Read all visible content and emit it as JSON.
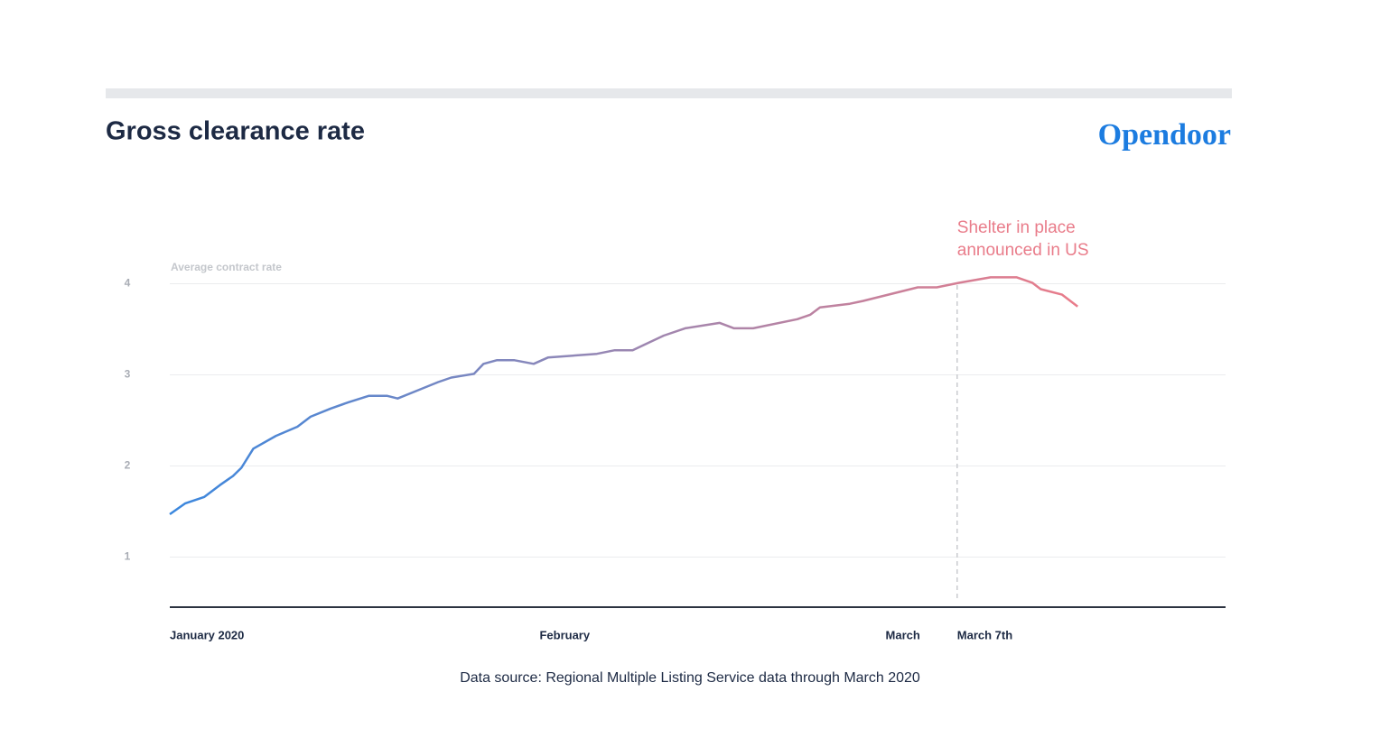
{
  "chart_data": {
    "type": "line",
    "title": "Gross clearance rate",
    "brand": "Opendoor",
    "y_label": "Average contract rate",
    "source": "Data source:  Regional Multiple Listing Service data through March 2020",
    "annotation": {
      "lines": [
        "Shelter in place",
        "announced in US"
      ],
      "color": "#e97c8a"
    },
    "x": [
      0,
      1.3,
      2.9,
      4.2,
      5.3,
      6.0,
      7.0,
      8.9,
      10.7,
      11.8,
      13.5,
      15.0,
      16.7,
      18.2,
      19.1,
      20.8,
      22.5,
      23.6,
      25.5,
      26.3,
      27.4,
      28.9,
      30.5,
      31.7,
      35.8,
      37.3,
      38.8,
      41.4,
      43.2,
      46.1,
      47.3,
      48.9,
      52.6,
      53.7,
      54.5,
      57.0,
      58.1,
      62.7,
      64.3,
      66.2,
      68.8,
      71.0,
      72.3,
      73.0,
      74.8,
      76.1
    ],
    "series": [
      {
        "gradient": [
          "#3a87de",
          "#9a87b2",
          "#e97c8a"
        ],
        "values": [
          1.47,
          1.59,
          1.66,
          1.79,
          1.89,
          1.98,
          2.19,
          2.33,
          2.43,
          2.54,
          2.63,
          2.7,
          2.77,
          2.77,
          2.74,
          2.83,
          2.92,
          2.97,
          3.01,
          3.12,
          3.16,
          3.16,
          3.12,
          3.19,
          3.23,
          3.27,
          3.27,
          3.43,
          3.51,
          3.57,
          3.51,
          3.51,
          3.61,
          3.66,
          3.74,
          3.78,
          3.81,
          3.96,
          3.96,
          4.01,
          4.07,
          4.07,
          4.01,
          3.94,
          3.88,
          3.75
        ]
      }
    ],
    "xlim": [
      0,
      88.5
    ],
    "xticks": [
      {
        "value": 0,
        "label": "January 2020"
      },
      {
        "value": 31,
        "label": "February"
      },
      {
        "value": 60,
        "label": "March"
      },
      {
        "value": 66,
        "label": "March 7th"
      }
    ],
    "marker_tick": 3,
    "ylim": [
      0.45,
      4.45
    ],
    "yticks": [
      1,
      2,
      3,
      4
    ],
    "grid": true
  }
}
